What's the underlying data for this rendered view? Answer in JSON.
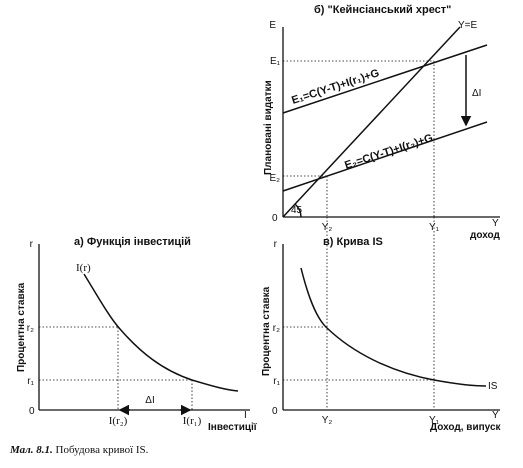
{
  "panel_b": {
    "title": "б) \"Кейнсіанський хрест\"",
    "ylabel": "Плановані видатки",
    "y_axis_letter": "E",
    "x_axis_letter": "Y",
    "x_axis_word": "доход",
    "line_45": "Y=E",
    "eq1": "E₁=C(Y-T)+I(r₁)+G",
    "eq2": "E₂=C(Y-T)+I(r₂)+G",
    "delta": "ΔI",
    "angle": "45",
    "origin": "0",
    "tick_e1": "E₁",
    "tick_e2": "E₂",
    "tick_y2": "Y₂",
    "tick_y1": "Y₁"
  },
  "panel_a": {
    "title": "а) Функція інвестицій",
    "ylabel": "Процентна ставка",
    "y_axis_letter": "r",
    "x_axis_letter": "I",
    "x_axis_word": "Інвестиції",
    "curve_label": "I(r)",
    "delta": "ΔI",
    "origin": "0",
    "tick_r2": "r₂",
    "tick_r1": "r₁",
    "tick_ir2": "I(r₂)",
    "tick_ir1": "I(r₁)"
  },
  "panel_c": {
    "title": "в) Крива IS",
    "ylabel": "Процентна ставка",
    "y_axis_letter": "r",
    "x_axis_letter": "Y",
    "x_axis_word": "Доход, випуск",
    "curve_label": "IS",
    "origin": "0",
    "tick_r2": "r₂",
    "tick_r1": "r₁",
    "tick_y2": "Y₂",
    "tick_y1": "Y₁"
  },
  "caption": {
    "lead": "Мал. 8.1.",
    "text": " Побудова кривої IS."
  }
}
